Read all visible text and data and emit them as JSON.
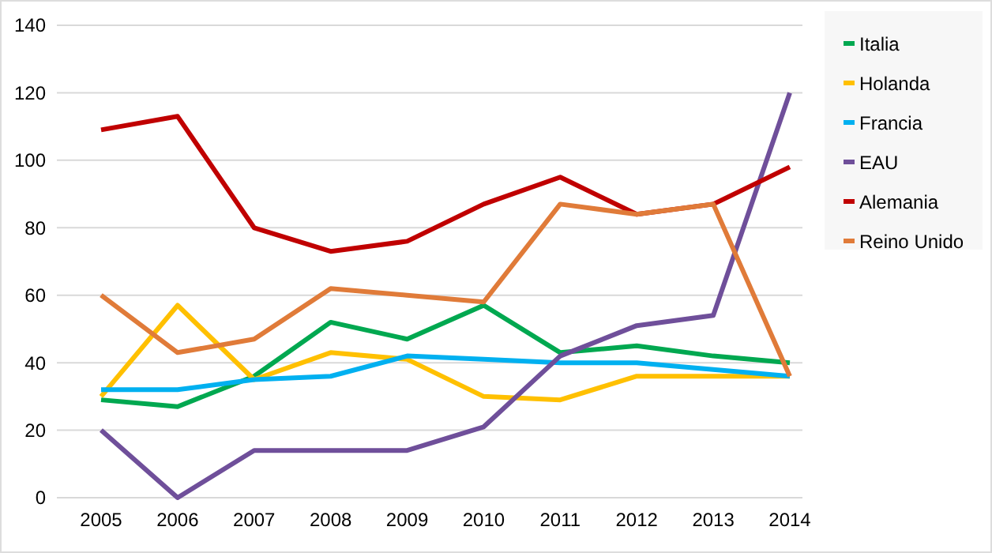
{
  "chart_data": {
    "type": "line",
    "categories": [
      "2005",
      "2006",
      "2007",
      "2008",
      "2009",
      "2010",
      "2011",
      "2012",
      "2013",
      "2014"
    ],
    "series": [
      {
        "name": "Italia",
        "color": "#00a850",
        "values": [
          29,
          27,
          36,
          52,
          47,
          57,
          43,
          45,
          42,
          40
        ]
      },
      {
        "name": "Holanda",
        "color": "#ffc000",
        "values": [
          30,
          57,
          35,
          43,
          41,
          30,
          29,
          36,
          36,
          36
        ]
      },
      {
        "name": "Francia",
        "color": "#00b0f0",
        "values": [
          32,
          32,
          35,
          36,
          42,
          41,
          40,
          40,
          38,
          36
        ]
      },
      {
        "name": "EAU",
        "color": "#6f4f9a",
        "values": [
          20,
          0,
          14,
          14,
          14,
          21,
          42,
          51,
          54,
          120
        ]
      },
      {
        "name": "Alemania",
        "color": "#c00000",
        "values": [
          109,
          113,
          80,
          73,
          76,
          87,
          95,
          84,
          87,
          98
        ]
      },
      {
        "name": "Reino Unido",
        "color": "#e07b39",
        "values": [
          60,
          43,
          47,
          62,
          60,
          58,
          87,
          84,
          87,
          36
        ]
      }
    ],
    "ylim": [
      0,
      140
    ],
    "yticks": [
      0,
      20,
      40,
      60,
      80,
      100,
      120,
      140
    ],
    "grid": "y",
    "legend": "right",
    "marker": "none",
    "line_style": "solid"
  }
}
